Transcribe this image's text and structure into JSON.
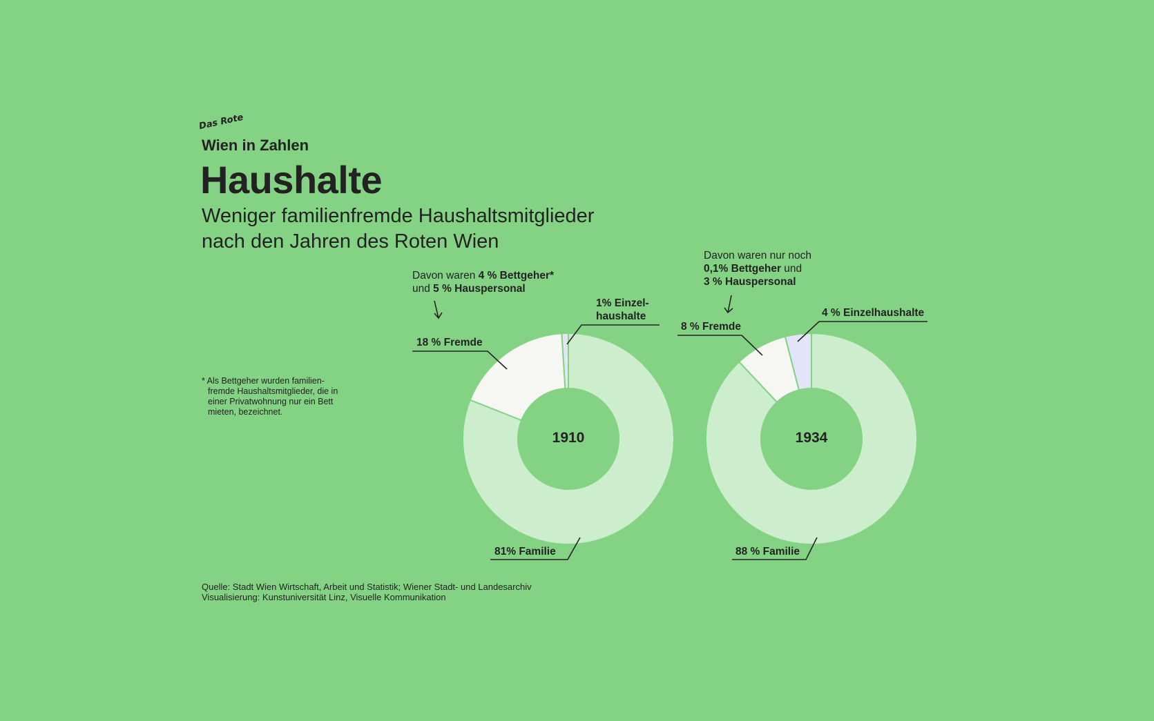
{
  "header": {
    "logo_small": "Das Rote",
    "brand": "Wien in Zahlen",
    "title": "Haushalte",
    "subtitle_line1": "Weniger familienfremde Haushaltsmitglieder",
    "subtitle_line2": "nach den Jahren des Roten Wien"
  },
  "footnote": {
    "line1": "* Als Bettgeher wurden familien-",
    "line2": "fremde Haushaltsmitglieder, die in",
    "line3": "einer Privatwohnung nur ein Bett",
    "line4": "mieten, bezeichnet."
  },
  "source": {
    "line1": "Quelle: Stadt Wien Wirtschaft, Arbeit und Statistik; Wiener Stadt- und Landesarchiv",
    "line2": "Visualisierung: Kunstuniversität Linz, Visuelle Kommunikation"
  },
  "annotations": {
    "a1910": {
      "t1": "Davon waren ",
      "b1": "4 % Bettgeher*",
      "t2": "und ",
      "b2": "5 % Hauspersonal"
    },
    "a1934": {
      "t1": "Davon waren nur noch",
      "b1": "0,1% Bettgeher",
      "t2": " und",
      "b2": "3 % Hauspersonal"
    }
  },
  "colors": {
    "background": "#84d384",
    "Familie": "#cdeecd",
    "Fremde": "#f6f6f3",
    "Einzelhaushalte": "#e3e3fa",
    "text": "#222222"
  },
  "chart_data": [
    {
      "type": "pie",
      "donut": true,
      "center_label": "1910",
      "categories": [
        "Familie",
        "Fremde",
        "Einzelhaushalte"
      ],
      "values": [
        81,
        18,
        1
      ],
      "labels": [
        "81% Familie",
        "18 % Fremde",
        "1% Einzel-haushalte"
      ],
      "label_lines": [
        "81% Familie",
        "18 % Fremde",
        "1% Einzel-",
        "haushalte"
      ]
    },
    {
      "type": "pie",
      "donut": true,
      "center_label": "1934",
      "categories": [
        "Familie",
        "Fremde",
        "Einzelhaushalte"
      ],
      "values": [
        88,
        8,
        4
      ],
      "labels": [
        "88 % Familie",
        "8 % Fremde",
        "4 % Einzelhaushalte"
      ]
    }
  ]
}
